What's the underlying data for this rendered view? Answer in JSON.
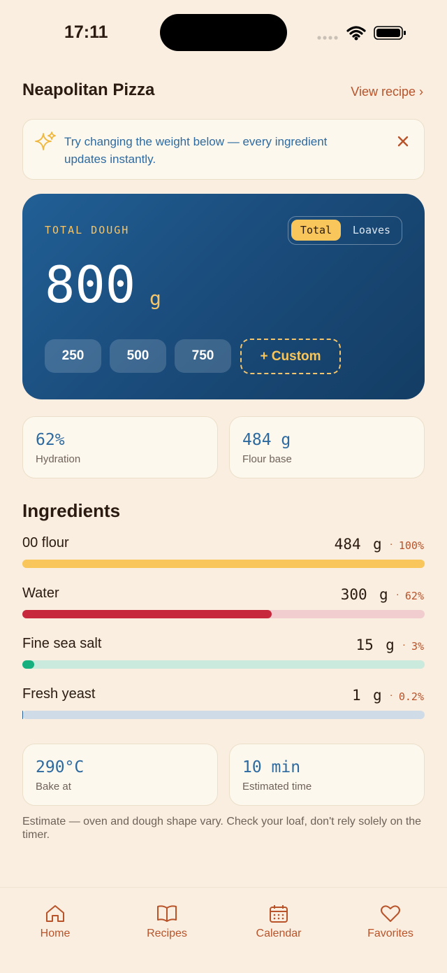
{
  "status_bar": {
    "time": "17:11"
  },
  "header": {
    "title": "Neapolitan Pizza",
    "link": "View recipe ›"
  },
  "tip": {
    "text": "Try changing the weight below — every ingredient updates instantly."
  },
  "dough_card": {
    "label": "TOTAL DOUGH",
    "toggle": [
      "Total",
      "Loaves"
    ],
    "weight": 800,
    "unit": "g",
    "presets": [
      250,
      500,
      750
    ],
    "custom": "+ Custom"
  },
  "stats": [
    {
      "value": "62%",
      "label": "Hydration"
    },
    {
      "value": "484 g",
      "label": "Flour base"
    }
  ],
  "ingredients": {
    "title": "Ingredients",
    "max_percent": 100,
    "items": [
      {
        "name": "00 flour",
        "amount": 484,
        "unit": "g",
        "percent": 100,
        "percent_label": "100%",
        "color": "#f8c65a",
        "track": "#fbe3a8"
      },
      {
        "name": "Water",
        "amount": 300,
        "unit": "g",
        "percent": 62,
        "percent_label": "62%",
        "color": "#c8283c",
        "track": "#f1cdd0"
      },
      {
        "name": "Fine sea salt",
        "amount": 15,
        "unit": "g",
        "percent": 3,
        "percent_label": "3%",
        "color": "#16b07f",
        "track": "#c9eadd"
      },
      {
        "name": "Fresh yeast",
        "amount": 1,
        "unit": "g",
        "percent": 0.2,
        "percent_label": "0.2%",
        "color": "#285f95",
        "track": "#cfdbe6"
      }
    ]
  },
  "bake": [
    {
      "value": "290°C",
      "label": "Bake at"
    },
    {
      "value": "10 min",
      "label": "Estimated time"
    }
  ],
  "note": "Estimate — oven and dough shape vary. Check your loaf, don't rely solely on the timer.",
  "nav": [
    "Home",
    "Recipes",
    "Calendar",
    "Favorites"
  ]
}
